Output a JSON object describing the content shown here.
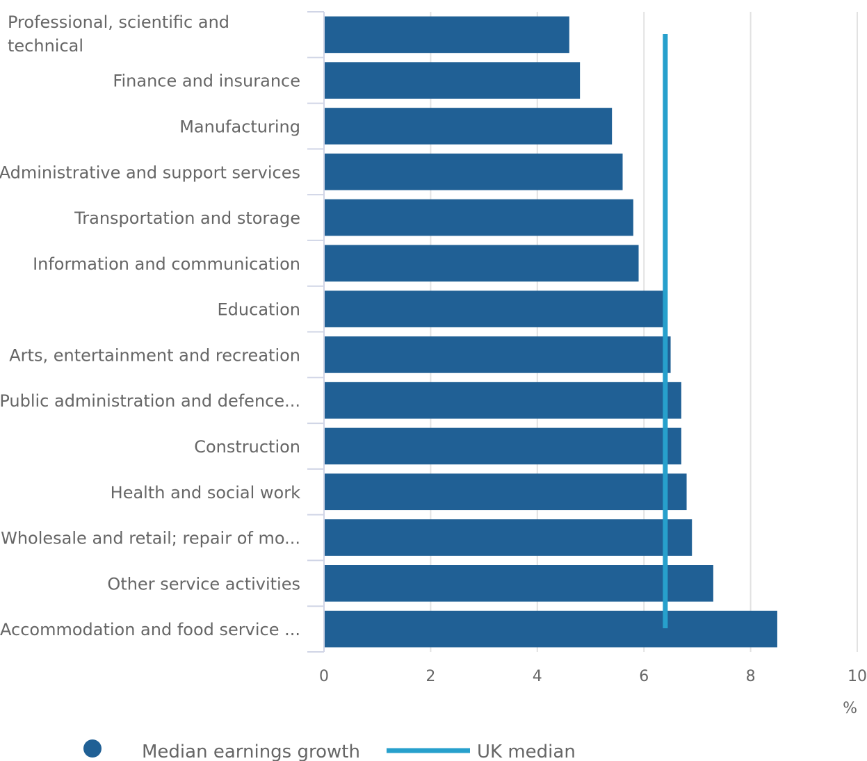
{
  "chart_data": {
    "type": "bar",
    "orientation": "horizontal",
    "categories": [
      "Professional, scientific and technical",
      "Finance and insurance",
      "Manufacturing",
      "Administrative and support services",
      "Transportation and storage",
      "Information and communication",
      "Education",
      "Arts, entertainment and recreation",
      "Public administration and defence...",
      "Construction",
      "Health and social work",
      "Wholesale and retail; repair of mo...",
      "Other service activities",
      "Accommodation and food service ..."
    ],
    "series": [
      {
        "name": "Median earnings growth",
        "color": "#206095",
        "values": [
          4.6,
          4.8,
          5.4,
          5.6,
          5.8,
          5.9,
          6.4,
          6.5,
          6.7,
          6.7,
          6.8,
          6.9,
          7.3,
          8.5
        ]
      }
    ],
    "reference_line": {
      "name": "UK median",
      "value": 6.4,
      "color": "#27a0cc"
    },
    "xlim": [
      0,
      10
    ],
    "xticks": [
      "0",
      "2",
      "4",
      "6",
      "8",
      "10"
    ],
    "xlabel": "%",
    "grid": true,
    "legend_position": "bottom"
  }
}
